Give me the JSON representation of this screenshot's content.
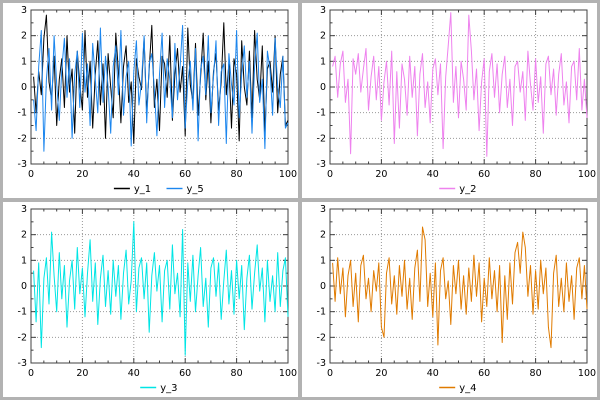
{
  "page": {
    "background_color": "#b2b2b2",
    "panel_background": "#ffffff",
    "grid_dot_color": "#999999",
    "border_color": "#404040"
  },
  "chart_data": [
    {
      "type": "line",
      "position": "top-left",
      "xlim": [
        0,
        100
      ],
      "ylim": [
        -3,
        3
      ],
      "x_ticks": [
        0,
        20,
        40,
        60,
        80,
        100
      ],
      "y_ticks": [
        -3,
        -2,
        -1,
        0,
        1,
        2,
        3
      ],
      "grid": true,
      "legend_position": "bottom-center",
      "series": [
        {
          "name": "y_1",
          "color": "#000000",
          "values": [
            0.4,
            -1.0,
            0.6,
            -0.3,
            1.9,
            2.8,
            0.2,
            -0.5,
            1.2,
            -1.5,
            0.3,
            1.1,
            -0.8,
            2.0,
            -0.2,
            0.7,
            -1.8,
            1.4,
            0.1,
            -0.9,
            2.2,
            -0.4,
            1.0,
            -1.6,
            0.5,
            1.8,
            -0.7,
            0.9,
            -2.0,
            1.3,
            0.0,
            -1.2,
            2.1,
            0.6,
            -1.4,
            0.8,
            1.6,
            -0.6,
            0.2,
            -2.2,
            1.1,
            0.4,
            -0.1,
            1.9,
            -1.0,
            0.7,
            2.4,
            -0.8,
            0.3,
            -1.7,
            1.2,
            0.9,
            -0.4,
            2.0,
            -1.3,
            0.5,
            1.5,
            -0.2,
            0.8,
            -1.9,
            2.3,
            0.1,
            -0.6,
            1.7,
            -1.1,
            0.4,
            2.1,
            -0.5,
            1.0,
            -1.4,
            0.6,
            1.3,
            -0.9,
            0.2,
            2.5,
            -0.3,
            0.9,
            -1.6,
            1.1,
            0.5,
            -2.1,
            1.8,
            0.0,
            -0.7,
            1.4,
            -1.2,
            2.2,
            0.3,
            -0.5,
            1.6,
            -1.8,
            0.7,
            1.0,
            -0.2,
            2.0,
            -1.0,
            0.5,
            1.2,
            -1.5,
            -1.3
          ]
        },
        {
          "name": "y_5",
          "color": "#1c86ee",
          "values": [
            -0.5,
            -1.7,
            0.8,
            2.2,
            -2.5,
            0.3,
            1.5,
            -0.9,
            2.0,
            0.1,
            -1.3,
            0.7,
            1.9,
            -0.4,
            1.1,
            -2.0,
            0.5,
            1.4,
            -0.8,
            2.1,
            -0.2,
            0.9,
            -1.5,
            1.7,
            0.3,
            -1.0,
            2.3,
            -0.6,
            1.2,
            0.0,
            -1.8,
            0.8,
            1.6,
            -0.3,
            2.2,
            -1.1,
            0.4,
            1.0,
            -2.3,
            0.6,
            1.8,
            -0.7,
            0.2,
            2.0,
            -1.4,
            0.9,
            1.3,
            -0.1,
            -1.9,
            0.5,
            2.1,
            -0.8,
            1.1,
            0.3,
            -1.2,
            1.7,
            -0.5,
            0.8,
            2.4,
            -1.6,
            0.2,
            1.0,
            -0.9,
            1.5,
            -2.1,
            0.7,
            1.2,
            -0.3,
            2.0,
            -1.0,
            0.4,
            1.8,
            -1.5,
            0.6,
            0.9,
            -2.2,
            1.3,
            0.1,
            -0.7,
            2.2,
            -1.2,
            0.5,
            1.6,
            -0.4,
            1.0,
            -1.8,
            0.8,
            2.1,
            -0.6,
            0.3,
            -2.4,
            1.4,
            0.7,
            -1.1,
            1.9,
            0.0,
            -0.8,
            1.2,
            -1.6,
            -1.4
          ]
        }
      ]
    },
    {
      "type": "line",
      "position": "top-right",
      "xlim": [
        0,
        100
      ],
      "ylim": [
        -3,
        3
      ],
      "x_ticks": [
        0,
        20,
        40,
        60,
        80,
        100
      ],
      "y_ticks": [
        -3,
        -2,
        -1,
        0,
        1,
        2,
        3
      ],
      "grid": true,
      "legend_position": "bottom-center",
      "series": [
        {
          "name": "y_2",
          "color": "#ee82ee",
          "values": [
            0.8,
            1.2,
            -0.4,
            0.9,
            1.4,
            -0.6,
            0.3,
            -2.6,
            1.1,
            0.5,
            1.3,
            -0.2,
            0.7,
            1.5,
            -0.9,
            0.4,
            1.2,
            -0.5,
            0.8,
            -1.3,
            0.2,
            1.0,
            -0.7,
            1.4,
            -2.2,
            0.6,
            -1.6,
            0.9,
            0.3,
            -1.1,
            1.2,
            -0.4,
            0.8,
            -1.9,
            0.5,
            1.3,
            -0.8,
            0.2,
            -1.4,
            0.7,
            1.1,
            -0.3,
            0.9,
            -2.4,
            0.4,
            1.6,
            2.9,
            -0.6,
            0.8,
            -1.2,
            1.0,
            0.3,
            -0.9,
            2.8,
            1.4,
            -0.5,
            0.7,
            -1.7,
            0.2,
            1.1,
            -2.7,
            0.6,
            1.3,
            -0.4,
            0.9,
            -1.0,
            0.5,
            1.2,
            -0.8,
            0.3,
            -1.5,
            0.8,
            1.0,
            -0.2,
            0.6,
            -1.3,
            1.4,
            0.1,
            -0.9,
            1.1,
            -0.6,
            0.4,
            -1.8,
            0.9,
            1.2,
            -0.3,
            0.7,
            -1.1,
            0.5,
            1.3,
            -0.7,
            0.2,
            -1.4,
            0.8,
            1.0,
            -0.5,
            1.5,
            -0.9,
            0.3,
            -1.2
          ]
        }
      ]
    },
    {
      "type": "line",
      "position": "bottom-left",
      "xlim": [
        0,
        100
      ],
      "ylim": [
        -3,
        3
      ],
      "x_ticks": [
        0,
        20,
        40,
        60,
        80,
        100
      ],
      "y_ticks": [
        -3,
        -2,
        -1,
        0,
        1,
        2,
        3
      ],
      "grid": true,
      "legend_position": "bottom-center",
      "series": [
        {
          "name": "y_3",
          "color": "#00e5e5",
          "values": [
            0.6,
            -1.4,
            0.9,
            -2.4,
            0.3,
            1.1,
            -0.7,
            2.1,
            0.4,
            -1.0,
            1.3,
            -0.5,
            0.8,
            -1.6,
            0.2,
            1.0,
            -0.9,
            1.5,
            -0.3,
            0.7,
            -1.2,
            0.5,
            1.8,
            -0.6,
            0.9,
            -1.5,
            0.3,
            1.2,
            -0.8,
            0.6,
            -1.1,
            1.0,
            -0.4,
            0.8,
            -1.3,
            0.5,
            1.4,
            -0.7,
            0.2,
            2.5,
            -1.0,
            0.7,
            1.1,
            -0.5,
            0.9,
            -1.8,
            0.4,
            1.3,
            -0.2,
            0.8,
            -1.4,
            0.6,
            1.0,
            -0.9,
            1.6,
            -0.3,
            0.5,
            -1.2,
            2.2,
            -2.7,
            0.9,
            -0.6,
            1.2,
            -1.0,
            0.4,
            1.5,
            -0.8,
            0.3,
            -1.6,
            0.7,
            1.1,
            -0.4,
            0.9,
            -1.3,
            0.2,
            1.4,
            -0.7,
            0.6,
            -1.1,
            1.0,
            -0.5,
            0.8,
            -1.7,
            0.3,
            1.2,
            -0.9,
            0.5,
            1.6,
            -0.2,
            0.7,
            -1.4,
            1.0,
            -0.6,
            0.4,
            -1.0,
            1.3,
            -0.8,
            0.6,
            1.1,
            -1.2
          ]
        }
      ]
    },
    {
      "type": "line",
      "position": "bottom-right",
      "xlim": [
        0,
        100
      ],
      "ylim": [
        -3,
        3
      ],
      "x_ticks": [
        0,
        20,
        40,
        60,
        80,
        100
      ],
      "y_ticks": [
        -3,
        -2,
        -1,
        0,
        1,
        2,
        3
      ],
      "grid": true,
      "legend_position": "bottom-center",
      "series": [
        {
          "name": "y_4",
          "color": "#e07b00",
          "values": [
            0.9,
            -0.6,
            1.1,
            -0.3,
            0.7,
            -1.2,
            0.4,
            1.0,
            -0.8,
            0.5,
            -1.4,
            0.8,
            1.2,
            -0.5,
            0.3,
            -1.0,
            0.6,
            -0.2,
            0.9,
            -1.6,
            -2.0,
            0.5,
            1.1,
            -0.7,
            0.4,
            -1.1,
            0.8,
            -0.4,
            1.0,
            -0.9,
            0.3,
            -1.3,
            0.7,
            1.4,
            -0.6,
            2.3,
            1.8,
            -0.8,
            0.5,
            -1.2,
            0.9,
            -2.3,
            0.6,
            1.1,
            -0.5,
            0.2,
            -1.5,
            0.8,
            -0.3,
            1.0,
            -0.9,
            0.4,
            -1.1,
            0.7,
            -0.6,
            1.2,
            -0.4,
            0.9,
            -1.4,
            0.3,
            -0.8,
            1.1,
            -0.5,
            0.6,
            -1.0,
            0.8,
            -2.2,
            0.4,
            -1.3,
            0.9,
            -0.7,
            1.3,
            1.7,
            0.5,
            2.1,
            1.5,
            -0.4,
            0.8,
            -1.1,
            0.6,
            -0.9,
            1.0,
            -0.3,
            0.7,
            -1.6,
            -2.4,
            0.5,
            1.2,
            -0.8,
            0.3,
            -1.0,
            0.9,
            -0.6,
            0.4,
            -1.3,
            0.7,
            1.1,
            -0.5,
            0.8,
            -0.9
          ]
        }
      ]
    }
  ]
}
